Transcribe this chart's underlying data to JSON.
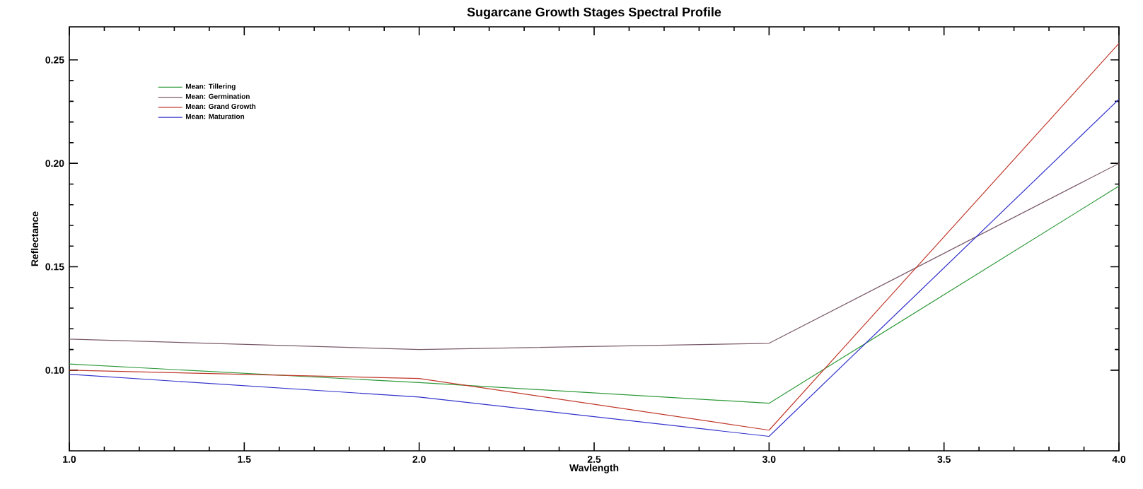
{
  "chart_data": {
    "type": "line",
    "title": "Sugarcane Growth Stages Spectral Profile",
    "xlabel": "Wavlength",
    "ylabel": "Reflectance",
    "x": [
      1.0,
      2.0,
      3.0,
      4.0
    ],
    "series": [
      {
        "name": "Mean: Tillering",
        "color": "#2e9a3a",
        "values": [
          0.103,
          0.094,
          0.084,
          0.189
        ]
      },
      {
        "name": "Mean: Germination",
        "color": "#7a5a6a",
        "values": [
          0.115,
          0.11,
          0.113,
          0.2
        ]
      },
      {
        "name": "Mean: Grand Growth",
        "color": "#c0392b",
        "values": [
          0.1,
          0.096,
          0.071,
          0.258
        ]
      },
      {
        "name": "Mean: Maturation",
        "color": "#3333cc",
        "values": [
          0.098,
          0.087,
          0.068,
          0.231
        ]
      }
    ],
    "xlim": [
      1.0,
      4.0
    ],
    "ylim": [
      0.061,
      0.266
    ],
    "xticks": [
      {
        "value": 1.0,
        "label": "1.0"
      },
      {
        "value": 1.5,
        "label": "1.5"
      },
      {
        "value": 2.0,
        "label": "2.0"
      },
      {
        "value": 2.5,
        "label": "2.5"
      },
      {
        "value": 3.0,
        "label": "3.0"
      },
      {
        "value": 3.5,
        "label": "3.5"
      },
      {
        "value": 4.0,
        "label": "4.0"
      }
    ],
    "yticks": [
      {
        "value": 0.1,
        "label": "0.10"
      },
      {
        "value": 0.15,
        "label": "0.15"
      },
      {
        "value": 0.2,
        "label": "0.20"
      },
      {
        "value": 0.25,
        "label": "0.25"
      }
    ],
    "legend": "top left",
    "grid": false,
    "marker": "none",
    "line_style": "solid"
  }
}
